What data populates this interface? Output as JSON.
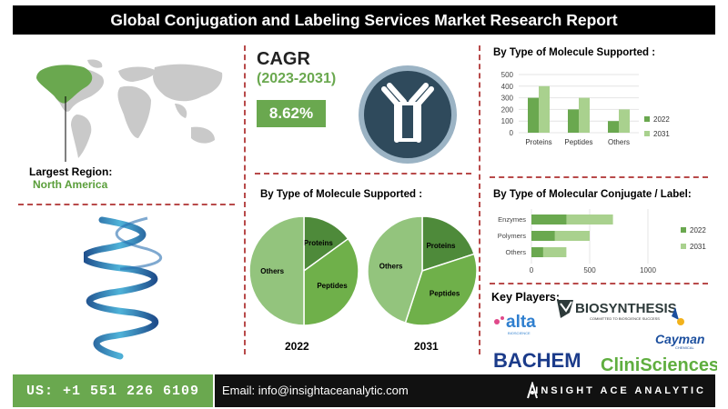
{
  "header": {
    "title": "Global Conjugation and Labeling Services Market Research Report"
  },
  "region": {
    "label": "Largest Region:",
    "value": "North America"
  },
  "cagr": {
    "label": "CAGR",
    "period": "(2023-2031)",
    "value": "8.62%"
  },
  "pies": {
    "title": "By Type of Molecule Supported :",
    "year_2022": "2022",
    "year_2031": "2031"
  },
  "chart_data": [
    {
      "type": "bar",
      "title": "By Type of Molecule Supported :",
      "categories": [
        "Proteins",
        "Peptides",
        "Others"
      ],
      "series": [
        {
          "name": "2022",
          "values": [
            300,
            200,
            100
          ]
        },
        {
          "name": "2031",
          "values": [
            400,
            300,
            200
          ]
        }
      ],
      "ylim": [
        0,
        500
      ],
      "yticks": [
        "0",
        "100",
        "200",
        "300",
        "400",
        "500"
      ],
      "colors": [
        "#6aa84f",
        "#a9d18e"
      ],
      "legend": "right"
    },
    {
      "type": "bar",
      "orientation": "horizontal",
      "title": "By Type of Molecular Conjugate / Label:",
      "categories": [
        "Enzymes",
        "Polymers",
        "Others"
      ],
      "series": [
        {
          "name": "2022",
          "values": [
            300,
            200,
            100
          ]
        },
        {
          "name": "2031",
          "values": [
            700,
            500,
            300
          ]
        }
      ],
      "xlim": [
        0,
        1000
      ],
      "xticks": [
        "0",
        "500",
        "1000"
      ],
      "colors": [
        "#6aa84f",
        "#a9d18e"
      ],
      "legend": "right"
    },
    {
      "type": "pie",
      "title": "2022",
      "labels": [
        "Proteins",
        "Peptides",
        "Others"
      ],
      "values": [
        15,
        35,
        50
      ],
      "colors": [
        "#4e8a3a",
        "#6fb04a",
        "#93c47d"
      ]
    },
    {
      "type": "pie",
      "title": "2031",
      "labels": [
        "Proteins",
        "Peptides",
        "Others"
      ],
      "values": [
        20,
        35,
        45
      ],
      "colors": [
        "#4e8a3a",
        "#6fb04a",
        "#93c47d"
      ]
    }
  ],
  "key_players": {
    "label": "Key Players:",
    "companies": [
      "alta",
      "BIOSYNTHESIS",
      "Cayman",
      "BACHEM",
      "CliniSciences"
    ]
  },
  "footer": {
    "phone": "US: +1 551 226 6109",
    "email": "Email: info@insightaceanalytic.com",
    "brand": "INSIGHT ACE ANALYTIC"
  }
}
